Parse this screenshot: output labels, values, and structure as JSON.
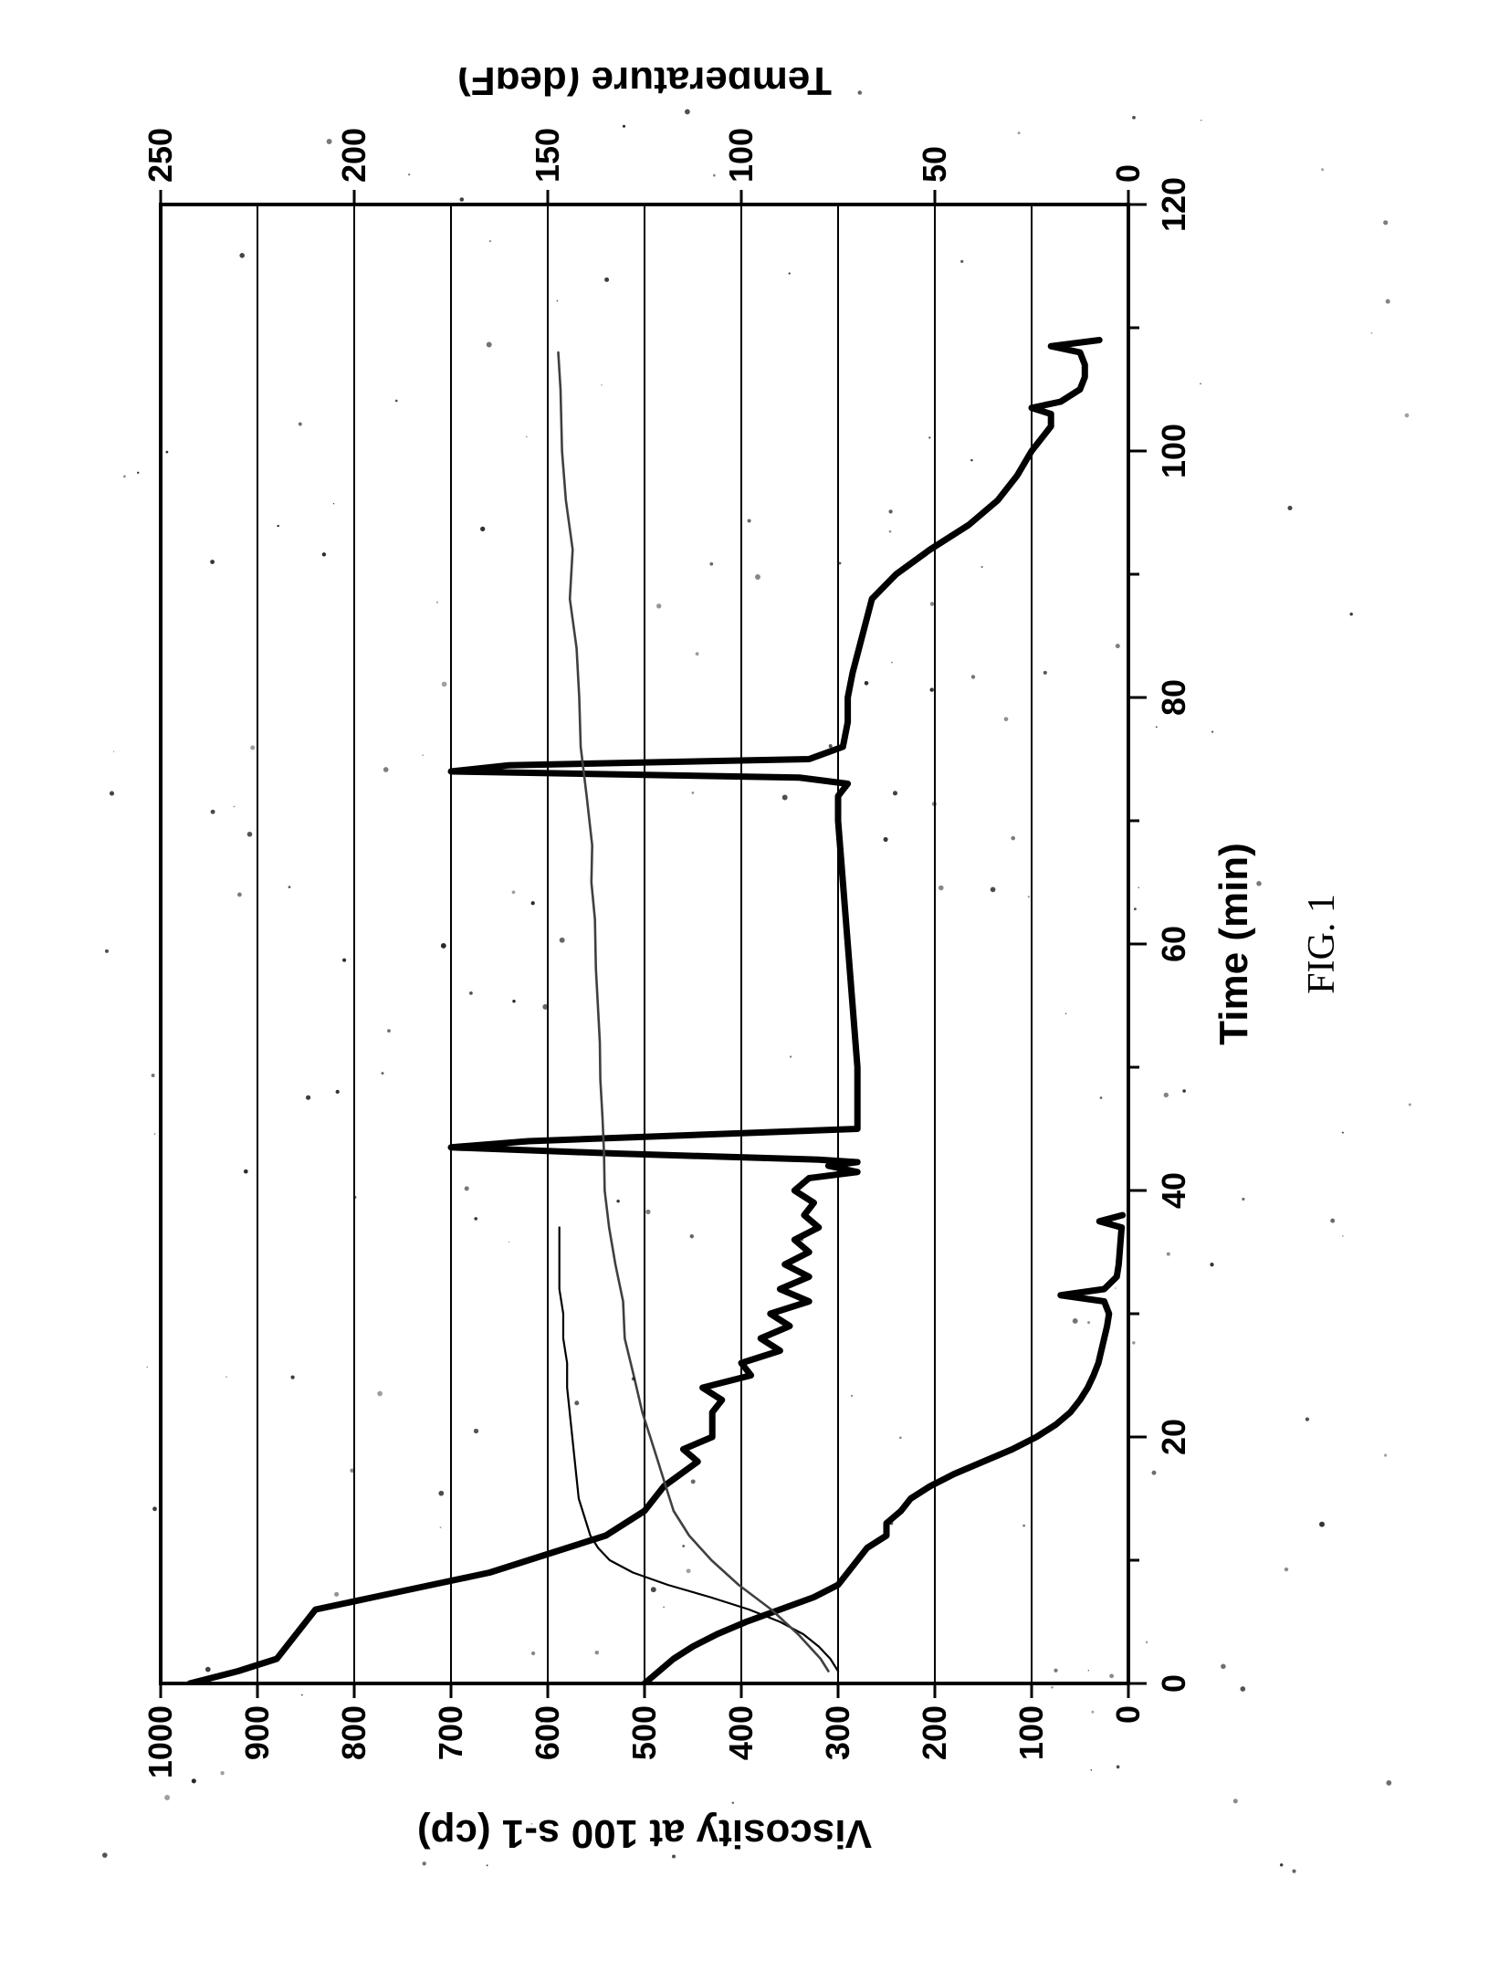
{
  "figure": {
    "type": "line",
    "caption": "FIG. 1",
    "background_color": "#ffffff",
    "axis_color": "#000000",
    "grid_color": "#000000",
    "axis_stroke_width": 4,
    "grid_stroke_width": 2,
    "tick_font_size": 36,
    "tick_font_weight": 700,
    "label_font_size": 44,
    "label_font_weight": 700,
    "caption_font_size": 42,
    "caption_font_family": "Times New Roman",
    "x": {
      "label": "Time (min)",
      "min": 0,
      "max": 120,
      "ticks": [
        0,
        20,
        40,
        60,
        80,
        100,
        120
      ],
      "minor_ticks_step": 10
    },
    "y_left": {
      "label": "Viscosity at 100 s-1 (cp)",
      "min": 0,
      "max": 1000,
      "ticks": [
        0,
        100,
        200,
        300,
        400,
        500,
        600,
        700,
        800,
        900,
        1000
      ],
      "gridlines": true
    },
    "y_right": {
      "label": "Temperature (degF)",
      "min": 0,
      "max": 250,
      "ticks": [
        0,
        50,
        100,
        150,
        200,
        250
      ]
    },
    "series": [
      {
        "name": "viscosity-upper",
        "axis": "y_left",
        "color": "#000000",
        "line_width": 7,
        "points": [
          [
            0,
            970
          ],
          [
            1,
            920
          ],
          [
            2,
            880
          ],
          [
            3,
            870
          ],
          [
            4,
            860
          ],
          [
            5,
            850
          ],
          [
            6,
            840
          ],
          [
            7,
            780
          ],
          [
            8,
            720
          ],
          [
            9,
            660
          ],
          [
            10,
            620
          ],
          [
            11,
            580
          ],
          [
            12,
            540
          ],
          [
            14,
            500
          ],
          [
            16,
            480
          ],
          [
            18,
            445
          ],
          [
            19,
            460
          ],
          [
            20,
            430
          ],
          [
            22,
            430
          ],
          [
            23,
            420
          ],
          [
            24,
            440
          ],
          [
            25,
            390
          ],
          [
            26,
            400
          ],
          [
            27,
            360
          ],
          [
            28,
            380
          ],
          [
            29,
            350
          ],
          [
            30,
            370
          ],
          [
            31,
            330
          ],
          [
            32,
            360
          ],
          [
            33,
            330
          ],
          [
            34,
            355
          ],
          [
            35,
            330
          ],
          [
            36,
            345
          ],
          [
            37,
            320
          ],
          [
            38,
            335
          ],
          [
            39,
            325
          ],
          [
            40,
            345
          ],
          [
            41,
            330
          ],
          [
            41.5,
            280
          ],
          [
            42,
            310
          ],
          [
            42.3,
            280
          ],
          [
            42.5,
            320
          ],
          [
            43,
            530
          ],
          [
            43.5,
            700
          ],
          [
            44,
            620
          ],
          [
            45,
            280
          ],
          [
            46,
            280
          ],
          [
            48,
            280
          ],
          [
            50,
            280
          ],
          [
            55,
            285
          ],
          [
            60,
            290
          ],
          [
            65,
            295
          ],
          [
            70,
            300
          ],
          [
            72,
            300
          ],
          [
            73,
            290
          ],
          [
            73.5,
            340
          ],
          [
            74,
            700
          ],
          [
            74.5,
            640
          ],
          [
            75,
            330
          ],
          [
            76,
            295
          ],
          [
            78,
            290
          ],
          [
            80,
            290
          ],
          [
            82,
            285
          ],
          [
            85,
            275
          ],
          [
            88,
            265
          ],
          [
            90,
            240
          ],
          [
            92,
            205
          ],
          [
            94,
            165
          ],
          [
            96,
            135
          ],
          [
            98,
            115
          ],
          [
            100,
            100
          ],
          [
            101,
            90
          ],
          [
            102,
            80
          ],
          [
            103,
            80
          ],
          [
            103.5,
            100
          ],
          [
            104,
            70
          ],
          [
            105,
            50
          ],
          [
            106,
            45
          ],
          [
            107,
            45
          ],
          [
            108,
            50
          ],
          [
            108.5,
            80
          ],
          [
            109,
            30
          ]
        ]
      },
      {
        "name": "viscosity-lower",
        "axis": "y_left",
        "color": "#000000",
        "line_width": 7,
        "points": [
          [
            0,
            500
          ],
          [
            1,
            485
          ],
          [
            2,
            470
          ],
          [
            3,
            450
          ],
          [
            4,
            425
          ],
          [
            5,
            395
          ],
          [
            6,
            360
          ],
          [
            7,
            325
          ],
          [
            8,
            300
          ],
          [
            9,
            290
          ],
          [
            10,
            280
          ],
          [
            11,
            270
          ],
          [
            12,
            250
          ],
          [
            13,
            250
          ],
          [
            14,
            235
          ],
          [
            15,
            225
          ],
          [
            16,
            205
          ],
          [
            17,
            180
          ],
          [
            18,
            150
          ],
          [
            19,
            120
          ],
          [
            20,
            95
          ],
          [
            21,
            75
          ],
          [
            22,
            60
          ],
          [
            23,
            50
          ],
          [
            24,
            42
          ],
          [
            25,
            36
          ],
          [
            26,
            31
          ],
          [
            27,
            28
          ],
          [
            28,
            25
          ],
          [
            29,
            22
          ],
          [
            30,
            20
          ],
          [
            31,
            25
          ],
          [
            31.5,
            70
          ],
          [
            32,
            25
          ],
          [
            33,
            12
          ],
          [
            34,
            10
          ],
          [
            35,
            9
          ],
          [
            36,
            8
          ],
          [
            37,
            7
          ],
          [
            37.5,
            30
          ],
          [
            38,
            6
          ]
        ]
      },
      {
        "name": "temperature-curve-a",
        "axis": "y_right",
        "color": "#000000",
        "line_width": 2.2,
        "points": [
          [
            1,
            75
          ],
          [
            2,
            77
          ],
          [
            3,
            80
          ],
          [
            4,
            84
          ],
          [
            5,
            90
          ],
          [
            6,
            98
          ],
          [
            7,
            108
          ],
          [
            8,
            119
          ],
          [
            9,
            128
          ],
          [
            10,
            134
          ],
          [
            11,
            137
          ],
          [
            12,
            139
          ],
          [
            13,
            140
          ],
          [
            15,
            142
          ],
          [
            18,
            143
          ],
          [
            21,
            144
          ],
          [
            24,
            145
          ],
          [
            26,
            145
          ],
          [
            28,
            146
          ],
          [
            30,
            146
          ],
          [
            32,
            147
          ],
          [
            34,
            147
          ],
          [
            36,
            147
          ],
          [
            37,
            147
          ]
        ]
      },
      {
        "name": "temperature-curve-b",
        "axis": "y_right",
        "color": "#404040",
        "line_width": 2.6,
        "rough": true,
        "points": [
          [
            1,
            78
          ],
          [
            2,
            80
          ],
          [
            4,
            85
          ],
          [
            6,
            92
          ],
          [
            8,
            101
          ],
          [
            10,
            108
          ],
          [
            12,
            113
          ],
          [
            14,
            117
          ],
          [
            16,
            120
          ],
          [
            18,
            122
          ],
          [
            20,
            124
          ],
          [
            22,
            126
          ],
          [
            25,
            128
          ],
          [
            28,
            130
          ],
          [
            31,
            131
          ],
          [
            34,
            133
          ],
          [
            37,
            134
          ],
          [
            40,
            135
          ],
          [
            43,
            135
          ],
          [
            46,
            136
          ],
          [
            49,
            136
          ],
          [
            52,
            137
          ],
          [
            55,
            137
          ],
          [
            58,
            138
          ],
          [
            62,
            138
          ],
          [
            65,
            139
          ],
          [
            68,
            139
          ],
          [
            72,
            140
          ],
          [
            76,
            141
          ],
          [
            80,
            142
          ],
          [
            84,
            143
          ],
          [
            88,
            144
          ],
          [
            92,
            144
          ],
          [
            96,
            145
          ],
          [
            100,
            146
          ],
          [
            105,
            147
          ],
          [
            108,
            147
          ]
        ]
      }
    ],
    "speckle_count": 180,
    "speckle_seed": 918273,
    "speckle_color": "#3a3a3a",
    "speckle_max_size": 2.4
  }
}
